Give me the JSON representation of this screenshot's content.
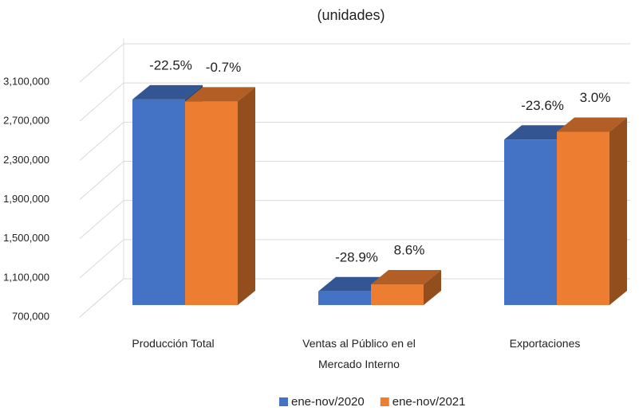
{
  "chart_data": {
    "type": "bar3d",
    "title": "(unidades)",
    "categories": [
      "Producción Total",
      "Ventas al Público en el Mercado Interno",
      "Exportaciones"
    ],
    "series": [
      {
        "name": "ene-nov/2020",
        "color": "#4472c4",
        "values": [
          2800000,
          840000,
          2390000
        ],
        "value_labels": [
          "-22.5%",
          "-28.9%",
          "-23.6%"
        ]
      },
      {
        "name": "ene-nov/2021",
        "color": "#ed7d31",
        "values": [
          2780000,
          912000,
          2470000
        ],
        "value_labels": [
          "-0.7%",
          "8.6%",
          "3.0%"
        ]
      }
    ],
    "ylim": [
      700000,
      3100000
    ],
    "yticks": [
      {
        "value": 700000,
        "label": "700,000"
      },
      {
        "value": 1100000,
        "label": "1,100,000"
      },
      {
        "value": 1500000,
        "label": "1,500,000"
      },
      {
        "value": 1900000,
        "label": "1,900,000"
      },
      {
        "value": 2300000,
        "label": "2,300,000"
      },
      {
        "value": 2700000,
        "label": "2,700,000"
      },
      {
        "value": 3100000,
        "label": "3,100,000"
      }
    ],
    "grid": true,
    "legend": "bottom"
  }
}
